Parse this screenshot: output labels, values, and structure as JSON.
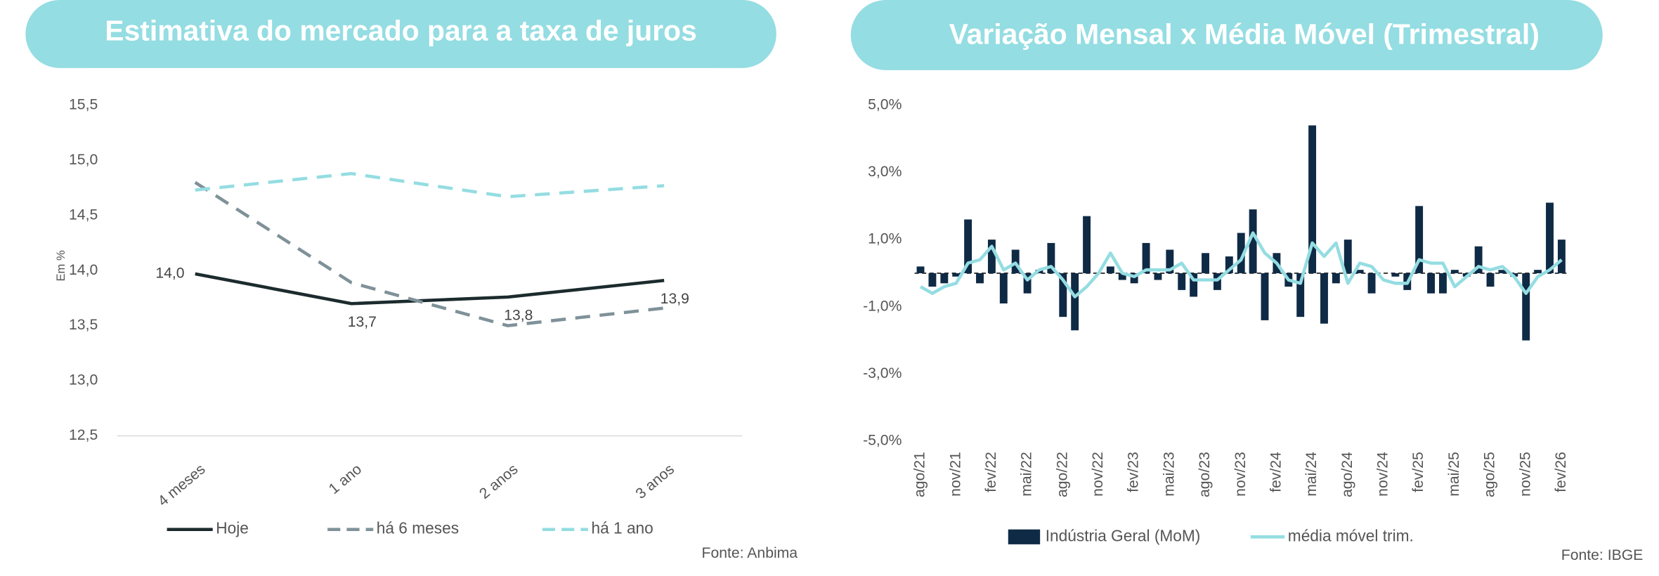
{
  "chart_data": [
    {
      "type": "line",
      "title": "Estimativa do mercado para a taxa de juros",
      "ylabel": "Em %",
      "source": "Fonte: Anbima",
      "categories": [
        "4 meses",
        "1 ano",
        "2 anos",
        "3 anos"
      ],
      "ylim": [
        12.5,
        15.5
      ],
      "yticks": [
        {
          "value": 12.5,
          "label": "12,5"
        },
        {
          "value": 13,
          "label": "13,0"
        },
        {
          "value": 13.5,
          "label": "13,5"
        },
        {
          "value": 14,
          "label": "14,0"
        },
        {
          "value": 14.5,
          "label": "14,5"
        },
        {
          "value": 15,
          "label": "15,0"
        },
        {
          "value": 15.5,
          "label": "15,5"
        }
      ],
      "grid": false,
      "series": [
        {
          "name": "Hoje",
          "color": "#1c2b2d",
          "dash": "solid",
          "values": [
            13.97,
            13.7,
            13.76,
            13.91
          ],
          "value_labels": [
            "14,0",
            "13,7",
            "13,8",
            "13,9"
          ]
        },
        {
          "name": "há 6 meses",
          "color": "#7f9199",
          "dash": "dashed",
          "values": [
            14.8,
            13.89,
            13.5,
            13.66
          ]
        },
        {
          "name": "há 1 ano",
          "color": "#94dde2",
          "dash": "dashed",
          "values": [
            14.73,
            14.88,
            14.67,
            14.77
          ]
        }
      ]
    },
    {
      "type": "bar",
      "title": "Variação Mensal x Média Móvel (Trimestral)",
      "source": "Fonte: IBGE",
      "categories": [
        "ago/21",
        null,
        null,
        "nov/21",
        null,
        null,
        "fev/22",
        null,
        null,
        "mai/22",
        null,
        null,
        "ago/22",
        null,
        null,
        "nov/22",
        null,
        null,
        "fev/23",
        null,
        null,
        "mai/23",
        null,
        null,
        "ago/23",
        null,
        null,
        "nov/23",
        null,
        null,
        "fev/24",
        null,
        null,
        "mai/24",
        null,
        null,
        "ago/24",
        null,
        null,
        "nov/24",
        null,
        null,
        "fev/25",
        null,
        null,
        "mai/25",
        null,
        null,
        "ago/25",
        null,
        null,
        "nov/25",
        null,
        null,
        "fev/26"
      ],
      "ylim": [
        -5,
        5
      ],
      "yticks": [
        {
          "value": -5,
          "label": "-5,0%"
        },
        {
          "value": -3,
          "label": "-3,0%"
        },
        {
          "value": -1,
          "label": "-1,0%"
        },
        {
          "value": 1,
          "label": "1,0%"
        },
        {
          "value": 3,
          "label": "3,0%"
        },
        {
          "value": 5,
          "label": "5,0%"
        }
      ],
      "grid": false,
      "series": [
        {
          "name": "Indústria Geral (MoM)",
          "type": "bar",
          "color": "#0f2a45",
          "values": [
            0.2,
            -0.4,
            -0.3,
            -0.1,
            1.6,
            -0.3,
            1.0,
            -0.9,
            0.7,
            -0.6,
            0.1,
            0.9,
            -1.3,
            -1.7,
            1.7,
            0.0,
            0.2,
            -0.2,
            -0.3,
            0.9,
            -0.2,
            0.7,
            -0.5,
            -0.7,
            0.6,
            -0.5,
            0.5,
            1.2,
            1.9,
            -1.4,
            0.6,
            -0.4,
            -1.3,
            4.4,
            -1.5,
            -0.3,
            1.0,
            0.1,
            -0.6,
            0.0,
            -0.1,
            -0.5,
            2.0,
            -0.6,
            -0.6,
            0.1,
            -0.1,
            0.8,
            -0.4,
            0.1,
            -0.1,
            -2.0,
            0.1,
            2.1,
            1.0
          ]
        },
        {
          "name": "média móvel trim.",
          "type": "line",
          "color": "#94dde2",
          "values": [
            -0.4,
            -0.6,
            -0.4,
            -0.3,
            0.3,
            0.4,
            0.8,
            0.1,
            0.3,
            -0.2,
            0.1,
            0.2,
            -0.2,
            -0.7,
            -0.4,
            0.0,
            0.6,
            0.0,
            -0.1,
            0.1,
            0.1,
            0.1,
            0.3,
            -0.2,
            -0.2,
            -0.2,
            0.1,
            0.4,
            1.2,
            0.6,
            0.3,
            -0.2,
            -0.3,
            0.9,
            0.5,
            0.9,
            -0.3,
            0.3,
            0.2,
            -0.2,
            -0.3,
            -0.3,
            0.4,
            0.3,
            0.3,
            -0.4,
            -0.1,
            0.2,
            0.1,
            0.2,
            -0.1,
            -0.6,
            -0.1,
            0.1,
            0.4
          ]
        }
      ]
    }
  ]
}
